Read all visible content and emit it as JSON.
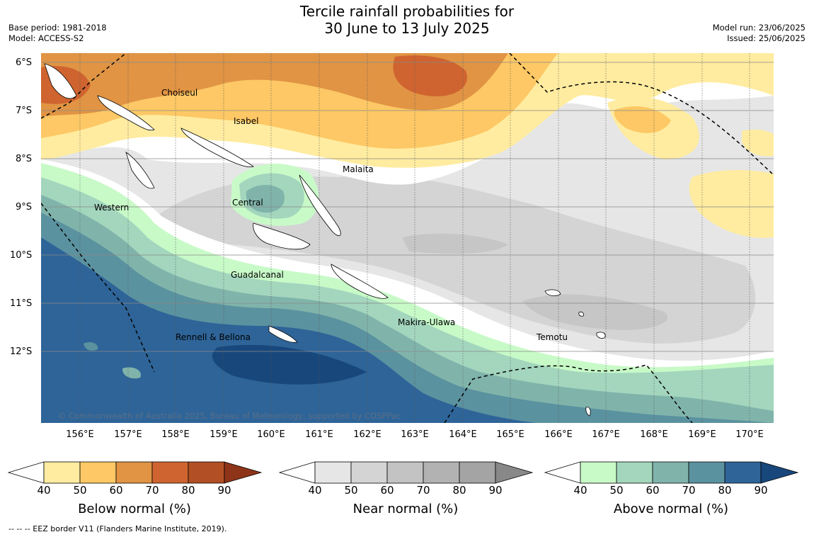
{
  "title_line1": "Tercile rainfall probabilities for",
  "title_line2": "30 June to 13 July 2025",
  "base_period": "Base period: 1981-2018",
  "model": "Model: ACCESS-S2",
  "model_run": "Model run: 23/06/2025",
  "issued": "Issued: 25/06/2025",
  "lat_labels": [
    "6°S",
    "7°S",
    "8°S",
    "9°S",
    "10°S",
    "11°S",
    "12°S"
  ],
  "lon_labels": [
    "156°E",
    "157°E",
    "158°E",
    "159°E",
    "160°E",
    "161°E",
    "162°E",
    "163°E",
    "164°E",
    "165°E",
    "166°E",
    "167°E",
    "168°E",
    "169°E",
    "170°E"
  ],
  "places": {
    "choiseul": "Choiseul",
    "isabel": "Isabel",
    "malaita": "Malaita",
    "western": "Western",
    "central": "Central",
    "guadalcanal": "Guadalcanal",
    "makira": "Makira-Ulawa",
    "temotu": "Temotu",
    "rennell": "Rennell & Bellona"
  },
  "copyright": "© Commonwealth of Australia 2025, Bureau of Meteorology, supported by COSPPac",
  "colorbars": {
    "below": {
      "title": "Below normal (%)",
      "ticks": [
        "40",
        "50",
        "60",
        "70",
        "80",
        "90"
      ],
      "colors": [
        "#ffffff",
        "#ffeca0",
        "#fdc865",
        "#e09444",
        "#cf6430",
        "#b24f25",
        "#8e3418"
      ]
    },
    "near": {
      "title": "Near normal (%)",
      "ticks": [
        "40",
        "50",
        "60",
        "70",
        "80",
        "90"
      ],
      "colors": [
        "#ffffff",
        "#e6e6e6",
        "#d4d4d4",
        "#c3c3c3",
        "#b2b2b2",
        "#a4a4a4",
        "#888888"
      ]
    },
    "above": {
      "title": "Above normal (%)",
      "ticks": [
        "40",
        "50",
        "60",
        "70",
        "80",
        "90"
      ],
      "colors": [
        "#ffffff",
        "#c8fac8",
        "#a3d6bd",
        "#80b4ab",
        "#5b929f",
        "#2e6498",
        "#18477c"
      ]
    }
  },
  "footer": "--  --  -- EEZ border V11 (Flanders Marine Institute, 2019)."
}
